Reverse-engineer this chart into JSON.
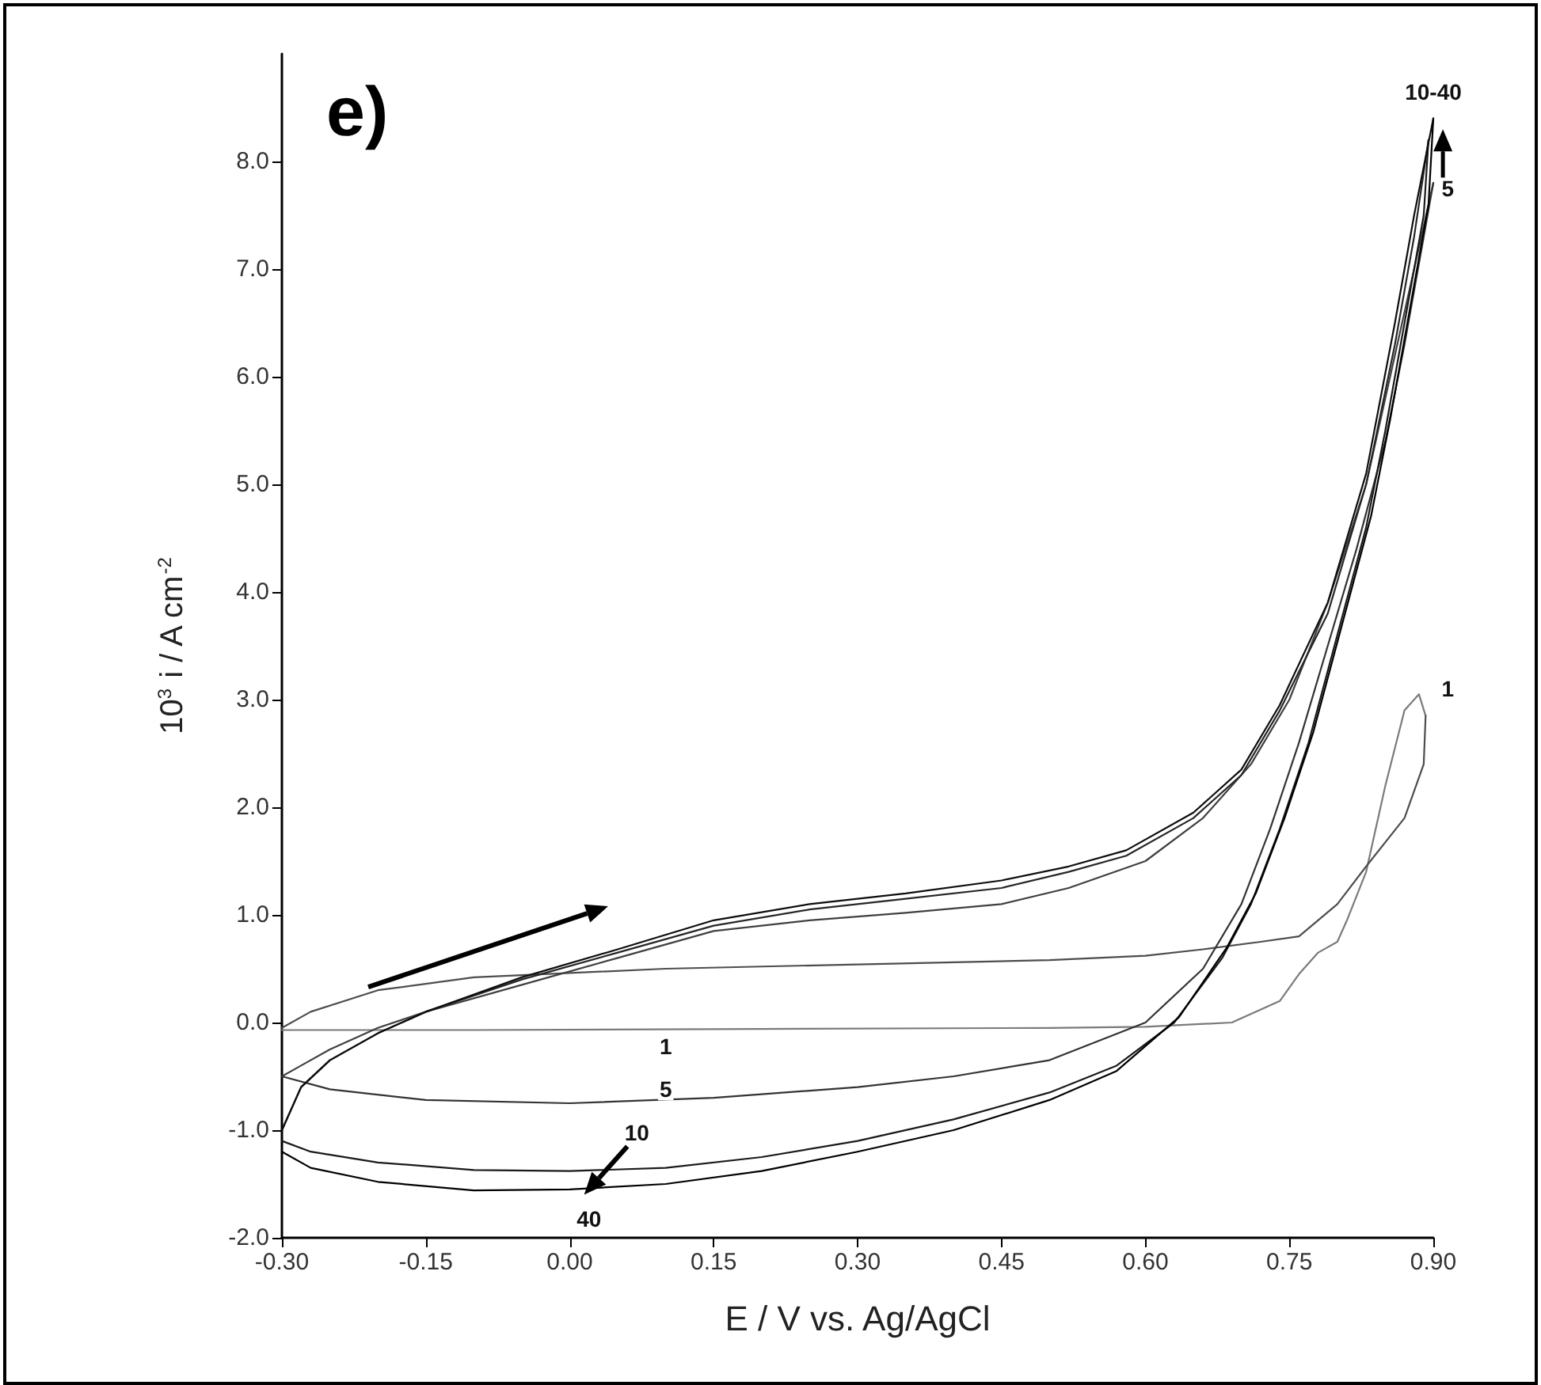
{
  "chart_data": {
    "type": "line",
    "xlabel": "E / V vs. Ag/AgCl",
    "ylabel": "10$^{3}$ i / A cm$^{-2}$",
    "xlim": [
      -0.3,
      0.9
    ],
    "ylim": [
      -2,
      9
    ],
    "xticks": [
      {
        "value": -0.3,
        "label": "-0.30"
      },
      {
        "value": -0.15,
        "label": "-0.15"
      },
      {
        "value": 0,
        "label": "0.00"
      },
      {
        "value": 0.15,
        "label": "0.15"
      },
      {
        "value": 0.3,
        "label": "0.30"
      },
      {
        "value": 0.45,
        "label": "0.45"
      },
      {
        "value": 0.6,
        "label": "0.60"
      },
      {
        "value": 0.75,
        "label": "0.75"
      },
      {
        "value": 0.9,
        "label": "0.90"
      }
    ],
    "yticks": [
      {
        "value": -2,
        "label": "-2.0"
      },
      {
        "value": -1,
        "label": "-1.0"
      },
      {
        "value": 0,
        "label": "0.0"
      },
      {
        "value": 1,
        "label": "1.0"
      },
      {
        "value": 2,
        "label": "2.0"
      },
      {
        "value": 3,
        "label": "3.0"
      },
      {
        "value": 4,
        "label": "4.0"
      },
      {
        "value": 5,
        "label": "5.0"
      },
      {
        "value": 6,
        "label": "6.0"
      },
      {
        "value": 7,
        "label": "7.0"
      },
      {
        "value": 8,
        "label": "8.0"
      }
    ],
    "grid": false,
    "marker": "none",
    "line_style": "solid",
    "series": [
      {
        "color": "#7a7a7a",
        "x": [
          -0.3,
          -0.1,
          0.2,
          0.5,
          0.6,
          0.69,
          0.74,
          0.76,
          0.78,
          0.8,
          0.81,
          0.83,
          0.85,
          0.87,
          0.885,
          0.892
        ],
        "values": [
          -0.07,
          -0.07,
          -0.06,
          -0.05,
          -0.04,
          0.0,
          0.2,
          0.45,
          0.65,
          0.75,
          0.95,
          1.4,
          2.2,
          2.9,
          3.05,
          2.85
        ]
      },
      {
        "color": "#4d4d4d",
        "x": [
          0.892,
          0.89,
          0.87,
          0.83,
          0.8,
          0.76,
          0.72,
          0.66,
          0.6,
          0.5,
          0.3,
          0.1,
          -0.1,
          -0.2,
          -0.27,
          -0.3
        ],
        "values": [
          2.85,
          2.4,
          1.9,
          1.45,
          1.1,
          0.8,
          0.75,
          0.68,
          0.62,
          0.58,
          0.54,
          0.5,
          0.42,
          0.3,
          0.1,
          -0.05
        ]
      },
      {
        "color": "#404040",
        "x": [
          -0.3,
          -0.28,
          -0.25,
          -0.2,
          -0.15,
          -0.05,
          0.05,
          0.15,
          0.25,
          0.35,
          0.45,
          0.52,
          0.6,
          0.66,
          0.71,
          0.75,
          0.79,
          0.83,
          0.86,
          0.88,
          0.9
        ],
        "values": [
          -0.5,
          -0.4,
          -0.25,
          -0.05,
          0.1,
          0.35,
          0.6,
          0.85,
          0.95,
          1.02,
          1.1,
          1.25,
          1.5,
          1.9,
          2.4,
          3.0,
          3.9,
          5.0,
          6.2,
          7.0,
          7.8
        ]
      },
      {
        "color": "#333333",
        "x": [
          0.9,
          0.89,
          0.87,
          0.85,
          0.82,
          0.79,
          0.76,
          0.73,
          0.7,
          0.66,
          0.6,
          0.5,
          0.4,
          0.3,
          0.15,
          0.0,
          -0.15,
          -0.25,
          -0.3
        ],
        "values": [
          7.8,
          7.3,
          6.3,
          5.4,
          4.4,
          3.5,
          2.6,
          1.8,
          1.1,
          0.5,
          0.0,
          -0.35,
          -0.5,
          -0.6,
          -0.7,
          -0.75,
          -0.72,
          -0.62,
          -0.5
        ]
      },
      {
        "color": "#262626",
        "x": [
          -0.3,
          -0.28,
          -0.25,
          -0.2,
          -0.15,
          -0.05,
          0.05,
          0.15,
          0.25,
          0.35,
          0.45,
          0.52,
          0.58,
          0.65,
          0.7,
          0.74,
          0.79,
          0.83,
          0.86,
          0.88,
          0.895
        ],
        "values": [
          -1.0,
          -0.6,
          -0.35,
          -0.1,
          0.1,
          0.4,
          0.65,
          0.9,
          1.05,
          1.15,
          1.25,
          1.4,
          1.55,
          1.9,
          2.3,
          2.9,
          3.8,
          5.0,
          6.3,
          7.3,
          8.2
        ]
      },
      {
        "color": "#1a1a1a",
        "x": [
          0.895,
          0.89,
          0.87,
          0.85,
          0.83,
          0.8,
          0.77,
          0.74,
          0.71,
          0.68,
          0.63,
          0.57,
          0.5,
          0.4,
          0.3,
          0.2,
          0.1,
          0.0,
          -0.1,
          -0.2,
          -0.27,
          -0.3
        ],
        "values": [
          8.2,
          7.5,
          6.5,
          5.5,
          4.6,
          3.6,
          2.6,
          1.8,
          1.1,
          0.6,
          0.0,
          -0.4,
          -0.65,
          -0.9,
          -1.1,
          -1.25,
          -1.35,
          -1.38,
          -1.37,
          -1.3,
          -1.2,
          -1.1
        ]
      },
      {
        "color": "#0d0d0d",
        "x": [
          -0.3,
          -0.28,
          -0.25,
          -0.2,
          -0.15,
          -0.05,
          0.05,
          0.15,
          0.25,
          0.35,
          0.45,
          0.52,
          0.58,
          0.65,
          0.7,
          0.74,
          0.79,
          0.83,
          0.86,
          0.88,
          0.9
        ],
        "values": [
          -1.0,
          -0.6,
          -0.35,
          -0.1,
          0.1,
          0.42,
          0.68,
          0.95,
          1.1,
          1.2,
          1.32,
          1.45,
          1.6,
          1.95,
          2.35,
          2.95,
          3.9,
          5.1,
          6.5,
          7.5,
          8.4
        ]
      },
      {
        "color": "#000000",
        "x": [
          0.9,
          0.895,
          0.875,
          0.855,
          0.835,
          0.805,
          0.775,
          0.745,
          0.715,
          0.685,
          0.635,
          0.57,
          0.5,
          0.4,
          0.3,
          0.2,
          0.1,
          0.0,
          -0.1,
          -0.2,
          -0.27,
          -0.3
        ],
        "values": [
          8.4,
          7.6,
          6.6,
          5.6,
          4.7,
          3.7,
          2.7,
          1.9,
          1.2,
          0.7,
          0.05,
          -0.45,
          -0.72,
          -1.0,
          -1.2,
          -1.38,
          -1.5,
          -1.55,
          -1.56,
          -1.48,
          -1.35,
          -1.2
        ]
      }
    ],
    "annotations": [
      "e)",
      "1",
      "1",
      "5",
      "5",
      "10",
      "40",
      "10-40"
    ]
  }
}
